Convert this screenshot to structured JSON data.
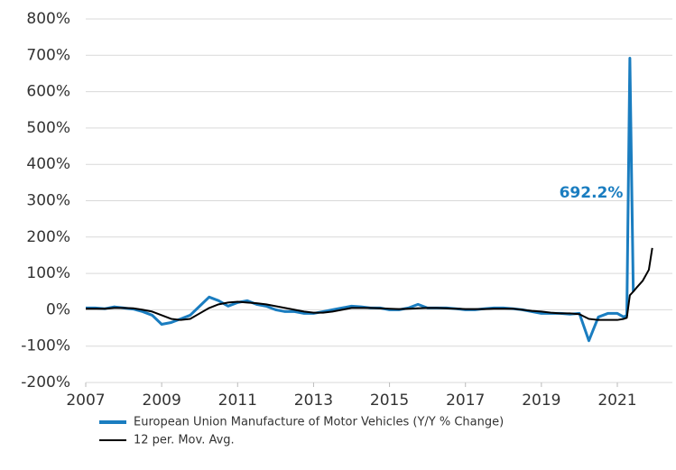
{
  "chart_data": {
    "type": "line",
    "x": [
      2007.0,
      2007.25,
      2007.5,
      2007.75,
      2008.0,
      2008.25,
      2008.5,
      2008.75,
      2009.0,
      2009.25,
      2009.5,
      2009.75,
      2010.0,
      2010.25,
      2010.5,
      2010.75,
      2011.0,
      2011.25,
      2011.5,
      2011.75,
      2012.0,
      2012.25,
      2012.5,
      2012.75,
      2013.0,
      2013.25,
      2013.5,
      2013.75,
      2014.0,
      2014.25,
      2014.5,
      2014.75,
      2015.0,
      2015.25,
      2015.5,
      2015.75,
      2016.0,
      2016.25,
      2016.5,
      2016.75,
      2017.0,
      2017.25,
      2017.5,
      2017.75,
      2018.0,
      2018.25,
      2018.5,
      2018.75,
      2019.0,
      2019.25,
      2019.5,
      2019.75,
      2020.0,
      2020.25,
      2020.5,
      2020.75,
      2021.0,
      2021.17,
      2021.25,
      2021.33,
      2021.42,
      2021.5,
      2021.67,
      2021.83,
      2021.92
    ],
    "series": [
      {
        "name": "European Union Manufacture of Motor Vehicles (Y/Y % Change)",
        "color": "#1a7dc0",
        "values": [
          5,
          5,
          3,
          8,
          5,
          2,
          -5,
          -15,
          -40,
          -35,
          -25,
          -15,
          10,
          35,
          25,
          10,
          20,
          25,
          15,
          10,
          0,
          -5,
          -5,
          -10,
          -10,
          -5,
          0,
          5,
          10,
          8,
          5,
          5,
          0,
          0,
          5,
          15,
          5,
          5,
          5,
          3,
          0,
          0,
          3,
          5,
          5,
          3,
          0,
          -5,
          -10,
          -10,
          -10,
          -12,
          -10,
          -85,
          -20,
          -10,
          -10,
          -20,
          -15,
          692.2,
          50,
          null,
          null,
          null,
          null
        ]
      },
      {
        "name": "12 per. Mov. Avg.",
        "color": "#000000",
        "values": [
          3,
          3,
          3,
          5,
          5,
          4,
          0,
          -5,
          -15,
          -25,
          -28,
          -25,
          -10,
          5,
          15,
          20,
          22,
          20,
          18,
          15,
          10,
          5,
          0,
          -5,
          -8,
          -8,
          -5,
          0,
          5,
          5,
          5,
          4,
          3,
          2,
          3,
          4,
          5,
          5,
          4,
          3,
          2,
          2,
          2,
          3,
          3,
          3,
          0,
          -3,
          -5,
          -8,
          -10,
          -10,
          -12,
          -25,
          -28,
          -28,
          -28,
          -25,
          -22,
          40,
          50,
          60,
          80,
          110,
          170
        ]
      }
    ],
    "annotations": [
      "692.2%"
    ],
    "xlim": [
      2007,
      2022.45
    ],
    "xticks": [
      2007,
      2009,
      2011,
      2013,
      2015,
      2017,
      2019,
      2021
    ],
    "ylim": [
      -200,
      800
    ],
    "yticks": [
      {
        "value": -200,
        "label": "-200%"
      },
      {
        "value": -100,
        "label": "-100%"
      },
      {
        "value": 0,
        "label": "0%"
      },
      {
        "value": 100,
        "label": "100%"
      },
      {
        "value": 200,
        "label": "200%"
      },
      {
        "value": 300,
        "label": "300%"
      },
      {
        "value": 400,
        "label": "400%"
      },
      {
        "value": 500,
        "label": "500%"
      },
      {
        "value": 600,
        "label": "600%"
      },
      {
        "value": 700,
        "label": "700%"
      },
      {
        "value": 800,
        "label": "800%"
      }
    ],
    "grid": true
  }
}
